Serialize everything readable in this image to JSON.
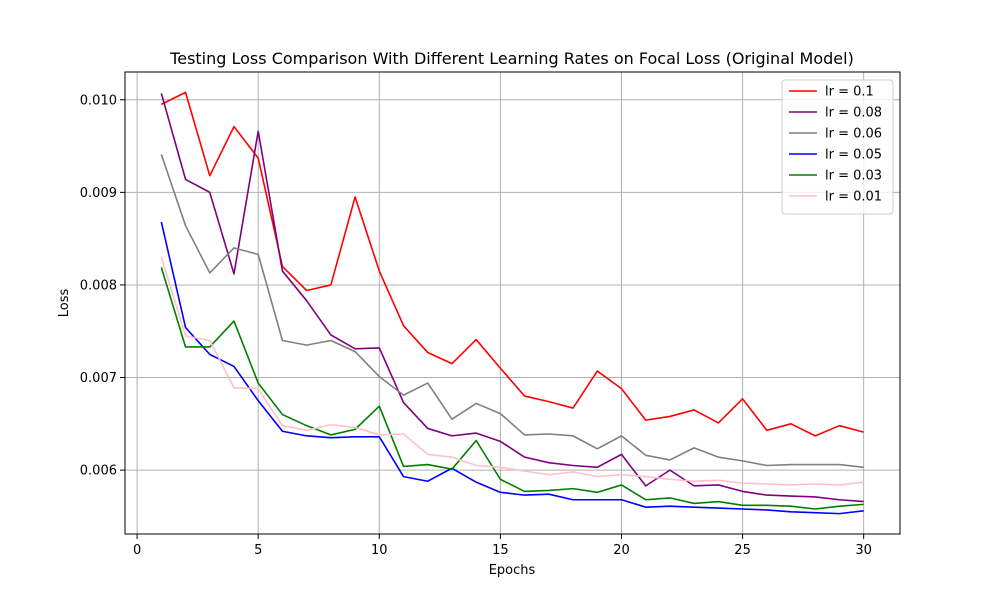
{
  "chart_data": {
    "type": "line",
    "title": "Testing Loss Comparison With Different Learning Rates on Focal Loss (Original Model)",
    "xlabel": "Epochs",
    "ylabel": "Loss",
    "xlim": [
      -0.5,
      31.5
    ],
    "ylim": [
      0.00531,
      0.0103
    ],
    "xticks": [
      0,
      5,
      10,
      15,
      20,
      25,
      30
    ],
    "yticks": [
      0.006,
      0.007,
      0.008,
      0.009,
      0.01
    ],
    "ytick_labels": [
      "0.006",
      "0.007",
      "0.008",
      "0.009",
      "0.010"
    ],
    "grid": true,
    "legend_position": "top-right",
    "x": [
      1,
      2,
      3,
      4,
      5,
      6,
      7,
      8,
      9,
      10,
      11,
      12,
      13,
      14,
      15,
      16,
      17,
      18,
      19,
      20,
      21,
      22,
      23,
      24,
      25,
      26,
      27,
      28,
      29,
      30
    ],
    "series": [
      {
        "name": "lr = 0.1",
        "color": "#ff0000",
        "values": [
          0.00995,
          0.01008,
          0.00918,
          0.00971,
          0.00937,
          0.0082,
          0.00794,
          0.008,
          0.00895,
          0.00815,
          0.00756,
          0.00727,
          0.00715,
          0.00741,
          0.0071,
          0.0068,
          0.00674,
          0.00667,
          0.00707,
          0.00688,
          0.00654,
          0.00658,
          0.00665,
          0.00651,
          0.00677,
          0.00643,
          0.0065,
          0.00637,
          0.00648,
          0.00641
        ]
      },
      {
        "name": "lr = 0.08",
        "color": "#800080",
        "values": [
          0.01007,
          0.00914,
          0.009,
          0.00812,
          0.00966,
          0.00815,
          0.00783,
          0.00746,
          0.00731,
          0.00732,
          0.00673,
          0.00645,
          0.00637,
          0.0064,
          0.00631,
          0.00614,
          0.00608,
          0.00605,
          0.00603,
          0.00617,
          0.00583,
          0.006,
          0.00583,
          0.00584,
          0.00577,
          0.00573,
          0.00572,
          0.00571,
          0.00568,
          0.00566
        ]
      },
      {
        "name": "lr = 0.06",
        "color": "#808080",
        "values": [
          0.00941,
          0.00864,
          0.00813,
          0.0084,
          0.00833,
          0.0074,
          0.00735,
          0.0074,
          0.00728,
          0.00701,
          0.00681,
          0.00694,
          0.00655,
          0.00672,
          0.00661,
          0.00638,
          0.00639,
          0.00637,
          0.00623,
          0.00637,
          0.00616,
          0.00611,
          0.00624,
          0.00614,
          0.0061,
          0.00605,
          0.00606,
          0.00606,
          0.00606,
          0.00603
        ]
      },
      {
        "name": "lr = 0.05",
        "color": "#0000ff",
        "values": [
          0.00868,
          0.00754,
          0.00725,
          0.00712,
          0.00675,
          0.00642,
          0.00637,
          0.00635,
          0.00636,
          0.00636,
          0.00593,
          0.00588,
          0.00602,
          0.00587,
          0.00576,
          0.00573,
          0.00574,
          0.00568,
          0.00568,
          0.00568,
          0.0056,
          0.00561,
          0.0056,
          0.00559,
          0.00558,
          0.00557,
          0.00555,
          0.00554,
          0.00553,
          0.00556
        ]
      },
      {
        "name": "lr = 0.03",
        "color": "#008000",
        "values": [
          0.00819,
          0.00733,
          0.00733,
          0.00761,
          0.00694,
          0.0066,
          0.00648,
          0.00638,
          0.00644,
          0.00669,
          0.00604,
          0.00606,
          0.00601,
          0.00632,
          0.0059,
          0.00577,
          0.00578,
          0.0058,
          0.00576,
          0.00584,
          0.00568,
          0.0057,
          0.00564,
          0.00566,
          0.00562,
          0.00562,
          0.00561,
          0.00558,
          0.00561,
          0.00563
        ]
      },
      {
        "name": "lr = 0.01",
        "color": "#ffc0cb",
        "values": [
          0.0083,
          0.00745,
          0.0074,
          0.00689,
          0.00688,
          0.00648,
          0.00643,
          0.00649,
          0.00646,
          0.00638,
          0.00639,
          0.00617,
          0.00614,
          0.00605,
          0.00603,
          0.00599,
          0.00595,
          0.00598,
          0.00593,
          0.00595,
          0.00593,
          0.0059,
          0.00588,
          0.00589,
          0.00586,
          0.00585,
          0.00584,
          0.00585,
          0.00584,
          0.00587
        ]
      }
    ]
  }
}
